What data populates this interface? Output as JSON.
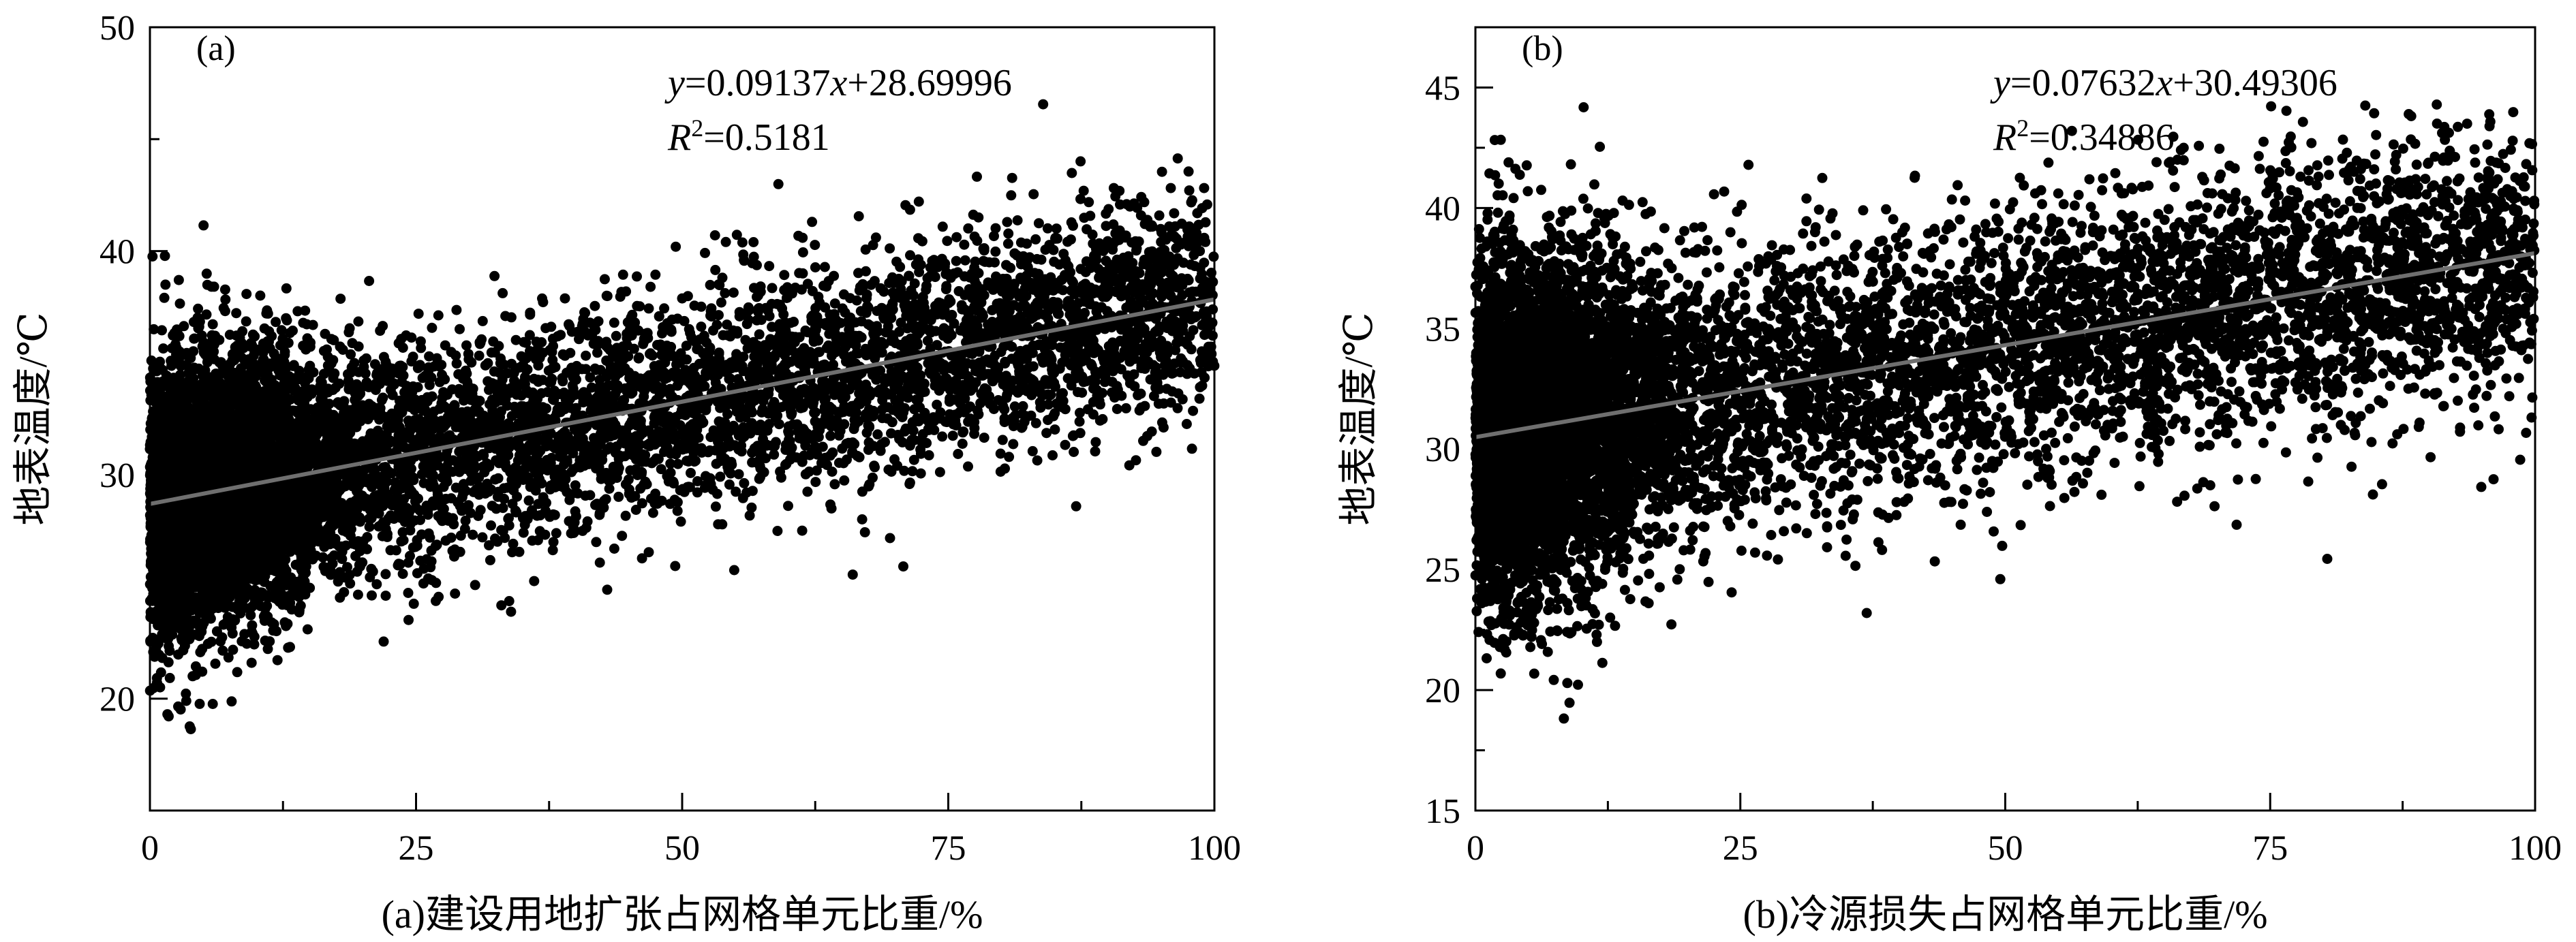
{
  "chart_data": [
    {
      "type": "scatter",
      "panel": "(a)",
      "xlabel": "(a)建设用地扩张占网格单元比重/%",
      "ylabel": "地表温度/℃",
      "xlim": [
        0,
        100
      ],
      "ylim": [
        15,
        50
      ],
      "xticks": [
        0,
        25,
        50,
        75,
        100
      ],
      "yticks": [
        20,
        30,
        40,
        50
      ],
      "equation": {
        "y": "y",
        "eq1": "=0.09137",
        "x": "x",
        "eq2": "+28.69996"
      },
      "r2": {
        "R": "R",
        "sup": "2",
        "val": "=0.5181"
      },
      "fit": {
        "slope": 0.09137,
        "intercept": 28.69996
      },
      "cloud": {
        "n": 9000,
        "spread": 2.6,
        "core_fraction": 0.45
      }
    },
    {
      "type": "scatter",
      "panel": "(b)",
      "xlabel": "(b)冷源损失占网格单元比重/%",
      "ylabel": "地表温度/℃",
      "xlim": [
        0,
        100
      ],
      "ylim": [
        15,
        47.5
      ],
      "xticks": [
        0,
        25,
        50,
        75,
        100
      ],
      "yticks": [
        15,
        20,
        25,
        30,
        35,
        40,
        45
      ],
      "equation": {
        "y": "y",
        "eq1": "=0.07632",
        "x": "x",
        "eq2": "+30.49306"
      },
      "r2": {
        "R": "R",
        "sup": "2",
        "val": "=0.34886"
      },
      "fit": {
        "slope": 0.07632,
        "intercept": 30.49306
      },
      "cloud": {
        "n": 9000,
        "spread": 3.0,
        "core_fraction": 0.45
      }
    }
  ]
}
